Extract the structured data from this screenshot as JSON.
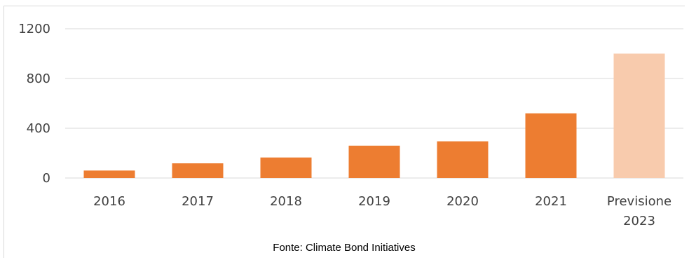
{
  "chart_data": {
    "type": "bar",
    "categories": [
      [
        "2016"
      ],
      [
        "2017"
      ],
      [
        "2018"
      ],
      [
        "2019"
      ],
      [
        "2020"
      ],
      [
        "2021"
      ],
      [
        "Previsione",
        "2023"
      ]
    ],
    "values": [
      60,
      118,
      165,
      260,
      295,
      520,
      1000
    ],
    "ylim": [
      0,
      1200
    ],
    "yticks": [
      0,
      400,
      800,
      1200
    ],
    "grid": true,
    "legend": "none",
    "colors": {
      "bar": "#ED7D31",
      "forecast_bar": "#F8CBAD",
      "gridline": "#d9d9d9",
      "axis_line": "#d9d9d9"
    },
    "source": "Fonte: Climate Bond Initiatives"
  }
}
